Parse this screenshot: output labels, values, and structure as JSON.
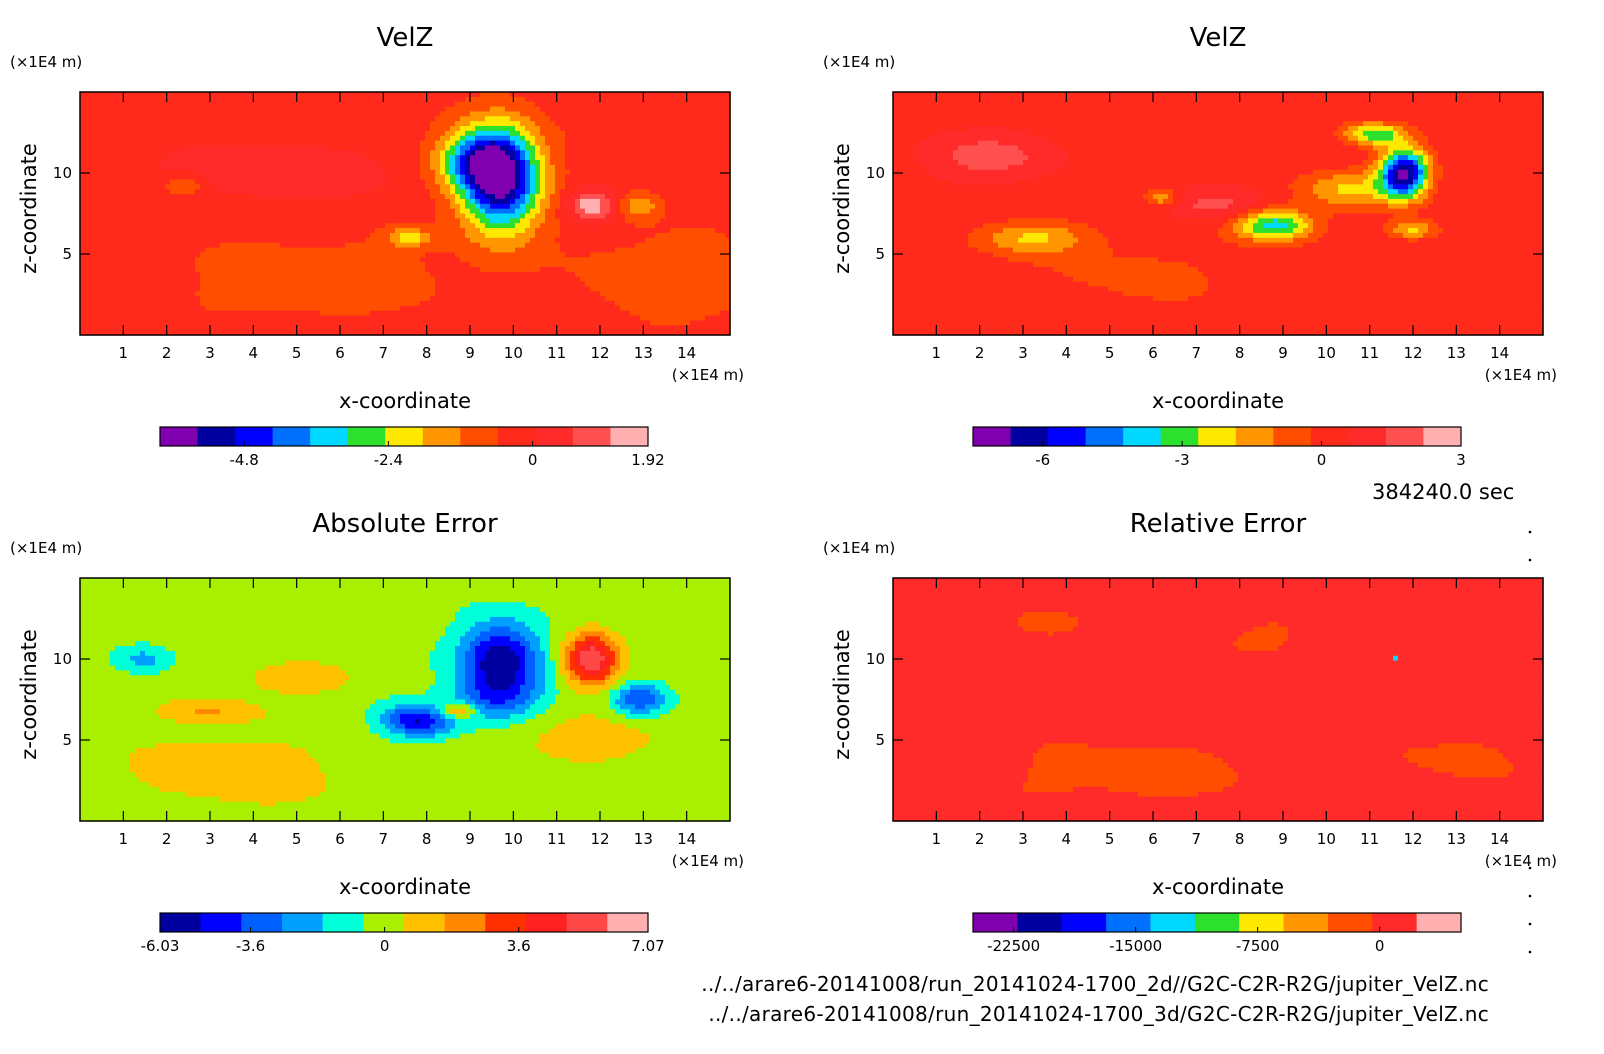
{
  "time_label": "384240.0 sec",
  "file_lines": [
    "../../arare6-20141008/run_20141024-1700_2d//G2C-C2R-R2G/jupiter_VelZ.nc",
    "../../arare6-20141008/run_20141024-1700_3d/G2C-C2R-R2G/jupiter_VelZ.nc"
  ],
  "palettes": {
    "rainbow13": [
      "#8000b0",
      "#0000a0",
      "#0000ff",
      "#0070ff",
      "#00d8ff",
      "#2ee02e",
      "#ffe800",
      "#ff9600",
      "#ff4e00",
      "#ff2a1c",
      "#ff2a2a",
      "#ff5050",
      "#ffb0b0"
    ],
    "diverge12": [
      "#0000a0",
      "#0000ff",
      "#0060ff",
      "#00a0ff",
      "#00ffd8",
      "#a8f000",
      "#ffc000",
      "#ff8800",
      "#ff3000",
      "#ff2020",
      "#ff4848",
      "#ffb0b0"
    ],
    "rel11": [
      "#8000b0",
      "#0000a0",
      "#0000ff",
      "#0070ff",
      "#00d8ff",
      "#2ee02e",
      "#ffe800",
      "#ff9600",
      "#ff4e00",
      "#ff2a2a",
      "#ffb0b0"
    ]
  },
  "chart_data": [
    {
      "type": "heatmap",
      "title": "VelZ",
      "xlabel": "x-coordinate",
      "ylabel": "z-coordinate",
      "x_unit": "(×1E4 m)",
      "y_unit": "(×1E4 m)",
      "xlim": [
        0,
        15
      ],
      "ylim": [
        0,
        15
      ],
      "x_ticks": [
        1,
        2,
        3,
        4,
        5,
        6,
        7,
        8,
        9,
        10,
        11,
        12,
        13,
        14
      ],
      "y_ticks": [
        5,
        10
      ],
      "colorbar": {
        "palette": "rainbow13",
        "tick_values": [
          -4.8,
          -2.4,
          0,
          1.92
        ],
        "tick_labels": [
          "-4.8",
          "-2.4",
          "0",
          "1.92"
        ],
        "min": -6.2,
        "max": 1.92
      },
      "background_value": -0.3,
      "features": [
        {
          "x": 9.7,
          "z": 9.6,
          "value": -6.0,
          "rx": 0.9,
          "rz": 3.2
        },
        {
          "x": 9.1,
          "z": 10.8,
          "value": -3.0,
          "rx": 0.9,
          "rz": 1.8
        },
        {
          "x": 11.8,
          "z": 8.0,
          "value": 1.9,
          "rx": 0.55,
          "rz": 1.0
        },
        {
          "x": 12.9,
          "z": 8.0,
          "value": -1.8,
          "rx": 0.45,
          "rz": 0.8
        },
        {
          "x": 7.6,
          "z": 6.0,
          "value": -2.0,
          "rx": 0.5,
          "rz": 0.6
        },
        {
          "x": 2.4,
          "z": 9.2,
          "value": -1.6,
          "rx": 0.45,
          "rz": 0.7
        },
        {
          "x": 4.5,
          "z": 10.0,
          "value": 0.6,
          "rx": 2.8,
          "rz": 1.8
        },
        {
          "x": 5.5,
          "z": 3.5,
          "value": -1.0,
          "rx": 3.0,
          "rz": 2.5
        },
        {
          "x": 13.5,
          "z": 3.5,
          "value": -1.0,
          "rx": 2.0,
          "rz": 3.0
        }
      ]
    },
    {
      "type": "heatmap",
      "title": "VelZ",
      "xlabel": "x-coordinate",
      "ylabel": "z-coordinate",
      "x_unit": "(×1E4 m)",
      "y_unit": "(×1E4 m)",
      "xlim": [
        0,
        15
      ],
      "ylim": [
        0,
        15
      ],
      "x_ticks": [
        1,
        2,
        3,
        4,
        5,
        6,
        7,
        8,
        9,
        10,
        11,
        12,
        13,
        14
      ],
      "y_ticks": [
        5,
        10
      ],
      "colorbar": {
        "palette": "rainbow13",
        "tick_values": [
          -6,
          -3,
          0,
          3
        ],
        "tick_labels": [
          "-6",
          "-3",
          "0",
          "3"
        ],
        "min": -7.5,
        "max": 3
      },
      "background_value": 0.4,
      "features": [
        {
          "x": 11.8,
          "z": 10.0,
          "value": -7.0,
          "rx": 0.55,
          "rz": 1.5
        },
        {
          "x": 8.8,
          "z": 6.8,
          "value": -4.0,
          "rx": 0.9,
          "rz": 1.0
        },
        {
          "x": 10.5,
          "z": 9.0,
          "value": -2.0,
          "rx": 1.2,
          "rz": 1.2
        },
        {
          "x": 11.1,
          "z": 12.4,
          "value": -3.2,
          "rx": 0.7,
          "rz": 0.7
        },
        {
          "x": 3.2,
          "z": 6.0,
          "value": -1.8,
          "rx": 1.3,
          "rz": 1.0
        },
        {
          "x": 6.2,
          "z": 8.5,
          "value": -1.8,
          "rx": 0.4,
          "rz": 0.6
        },
        {
          "x": 12.0,
          "z": 6.5,
          "value": -2.0,
          "rx": 0.6,
          "rz": 0.6
        },
        {
          "x": 2.2,
          "z": 11.0,
          "value": 1.9,
          "rx": 1.3,
          "rz": 1.2
        },
        {
          "x": 7.5,
          "z": 8.0,
          "value": 1.8,
          "rx": 1.2,
          "rz": 1.0
        },
        {
          "x": 5.5,
          "z": 3.5,
          "value": -0.4,
          "rx": 3.0,
          "rz": 3.0
        }
      ]
    },
    {
      "type": "heatmap",
      "title": "Absolute Error",
      "xlabel": "x-coordinate",
      "ylabel": "z-coordinate",
      "x_unit": "(×1E4 m)",
      "y_unit": "(×1E4 m)",
      "xlim": [
        0,
        15
      ],
      "ylim": [
        0,
        15
      ],
      "x_ticks": [
        1,
        2,
        3,
        4,
        5,
        6,
        7,
        8,
        9,
        10,
        11,
        12,
        13,
        14
      ],
      "y_ticks": [
        5,
        10
      ],
      "colorbar": {
        "palette": "diverge12",
        "tick_values": [
          -6.03,
          -3.6,
          0,
          3.6,
          7.07
        ],
        "tick_labels": [
          "-6.03",
          "-3.6",
          "0",
          "3.6",
          "7.07"
        ],
        "min": -6.03,
        "max": 7.07
      },
      "background_value": -0.2,
      "features": [
        {
          "x": 9.7,
          "z": 10.0,
          "value": -6.0,
          "rx": 0.9,
          "rz": 2.2
        },
        {
          "x": 11.8,
          "z": 10.0,
          "value": 6.0,
          "rx": 0.6,
          "rz": 1.6
        },
        {
          "x": 7.8,
          "z": 6.2,
          "value": -5.0,
          "rx": 0.8,
          "rz": 1.0
        },
        {
          "x": 9.6,
          "z": 7.5,
          "value": -3.0,
          "rx": 1.0,
          "rz": 1.5
        },
        {
          "x": 12.9,
          "z": 7.5,
          "value": -4.0,
          "rx": 0.6,
          "rz": 1.0
        },
        {
          "x": 1.5,
          "z": 10.0,
          "value": -2.0,
          "rx": 0.6,
          "rz": 0.8
        },
        {
          "x": 8.7,
          "z": 6.8,
          "value": 3.0,
          "rx": 0.5,
          "rz": 0.5
        },
        {
          "x": 5.0,
          "z": 8.8,
          "value": 1.5,
          "rx": 1.2,
          "rz": 1.0
        },
        {
          "x": 3.0,
          "z": 6.8,
          "value": 1.5,
          "rx": 1.1,
          "rz": 0.7
        },
        {
          "x": 3.5,
          "z": 3.0,
          "value": 1.0,
          "rx": 3.0,
          "rz": 3.0
        },
        {
          "x": 11.5,
          "z": 5.0,
          "value": 1.0,
          "rx": 2.0,
          "rz": 2.0
        }
      ]
    },
    {
      "type": "heatmap",
      "title": "Relative Error",
      "xlabel": "x-coordinate",
      "ylabel": "z-coordinate",
      "x_unit": "(×1E4 m)",
      "y_unit": "(×1E4 m)",
      "xlim": [
        0,
        15
      ],
      "ylim": [
        0,
        15
      ],
      "x_ticks": [
        1,
        2,
        3,
        4,
        5,
        6,
        7,
        8,
        9,
        10,
        11,
        12,
        13,
        14
      ],
      "y_ticks": [
        5,
        10
      ],
      "colorbar": {
        "palette": "rel11",
        "tick_values": [
          -22500,
          -15000,
          -7500,
          0
        ],
        "tick_labels": [
          "-22500",
          "-15000",
          "-7500",
          "0"
        ],
        "min": -25000,
        "max": 5000
      },
      "background_value": 800,
      "features": [
        {
          "x": 5.5,
          "z": 3.0,
          "value": -1200,
          "rx": 3.5,
          "rz": 2.5
        },
        {
          "x": 13.0,
          "z": 4.0,
          "value": -800,
          "rx": 2.0,
          "rz": 2.5
        },
        {
          "x": 3.0,
          "z": 12.0,
          "value": -600,
          "rx": 2.0,
          "rz": 2.0
        },
        {
          "x": 9.0,
          "z": 11.5,
          "value": -800,
          "rx": 1.8,
          "rz": 2.0
        },
        {
          "x": 11.6,
          "z": 10.1,
          "value": -14000,
          "rx": 0.06,
          "rz": 0.12
        }
      ]
    }
  ]
}
